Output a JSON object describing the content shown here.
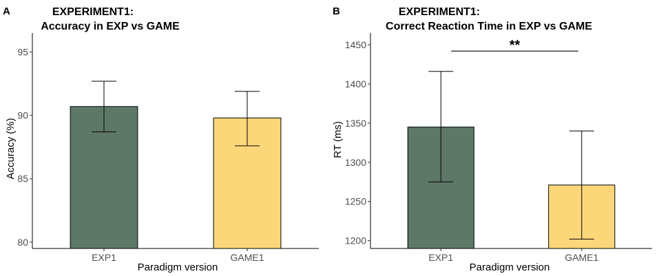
{
  "colors": {
    "exp": "#5e7868",
    "game": "#fcd77a"
  },
  "chart_data": [
    {
      "type": "bar",
      "panel": "A",
      "title_line1": "EXPERIMENT1:",
      "title_line2": "Accuracy in EXP vs GAME",
      "xlabel": "Paradigm version",
      "ylabel": "Accuracy (%)",
      "ylim": [
        79.5,
        96.5
      ],
      "yticks": [
        80,
        85,
        90,
        95
      ],
      "categories": [
        "EXP1",
        "GAME1"
      ],
      "values": [
        90.7,
        89.8
      ],
      "err_low": [
        88.7,
        87.6
      ],
      "err_high": [
        92.7,
        91.9
      ],
      "significance": null
    },
    {
      "type": "bar",
      "panel": "B",
      "title_line1": "EXPERIMENT1:",
      "title_line2": "Correct Reaction Time in EXP vs GAME",
      "xlabel": "Paradigm version",
      "ylabel": "RT (ms)",
      "ylim": [
        1190,
        1465
      ],
      "yticks": [
        1200,
        1250,
        1300,
        1350,
        1400,
        1450
      ],
      "categories": [
        "EXP1",
        "GAME1"
      ],
      "values": [
        1345,
        1271
      ],
      "err_low": [
        1275,
        1202
      ],
      "err_high": [
        1416,
        1340
      ],
      "significance": {
        "label": "**",
        "y": 1442
      }
    }
  ]
}
